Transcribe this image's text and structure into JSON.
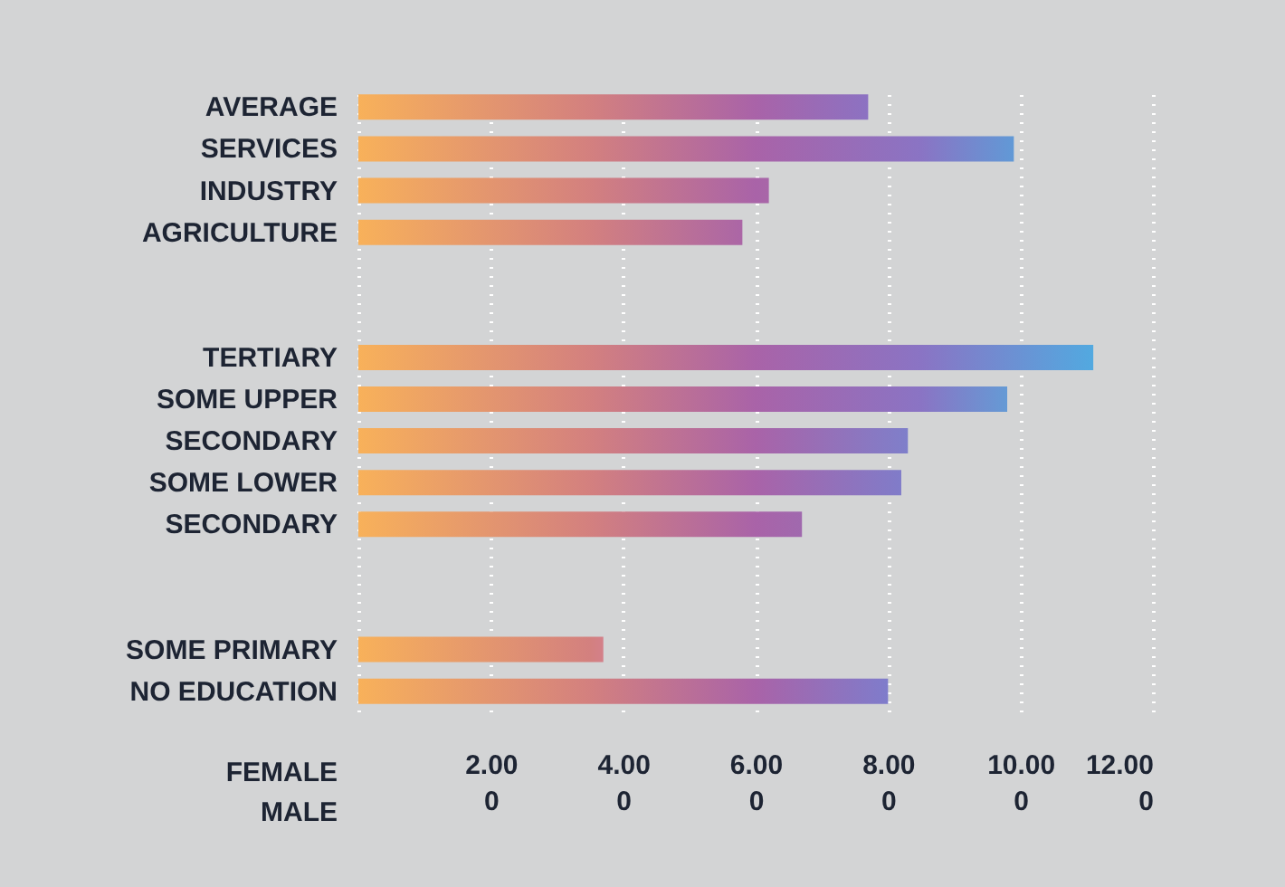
{
  "chart_data": {
    "type": "bar",
    "orientation": "horizontal",
    "categories": [
      "AVERAGE",
      "SERVICES",
      "INDUSTRY",
      "AGRICULTURE",
      null,
      null,
      "TERTIARY",
      "SOME UPPER",
      "SECONDARY",
      "SOME LOWER",
      "SECONDARY",
      null,
      null,
      "SOME PRIMARY",
      "NO EDUCATION"
    ],
    "values": [
      7.7,
      9.9,
      6.2,
      5.8,
      null,
      null,
      11.1,
      9.8,
      8.3,
      8.2,
      6.7,
      null,
      null,
      3.7,
      8.0
    ],
    "colors": [
      "#8c72c2",
      "#6199d6",
      "#a866a8",
      "#ab66a6",
      null,
      null,
      "#52a9e0",
      "#659ad5",
      "#7f7fca",
      "#807cc9",
      "#a069ae",
      null,
      null,
      "#d3808a",
      "#7f7ccb"
    ],
    "xlabel": "FEMALE\nMALE",
    "xlim": [
      0,
      12
    ],
    "xticks": [
      {
        "value": 0,
        "label": null
      },
      {
        "value": 2,
        "label": "2.000"
      },
      {
        "value": 4,
        "label": "4.000"
      },
      {
        "value": 6,
        "label": "6.000"
      },
      {
        "value": 8,
        "label": "8.000"
      },
      {
        "value": 10,
        "label": "10.000"
      },
      {
        "value": 12,
        "label": "12.000"
      }
    ],
    "grid": "x"
  }
}
